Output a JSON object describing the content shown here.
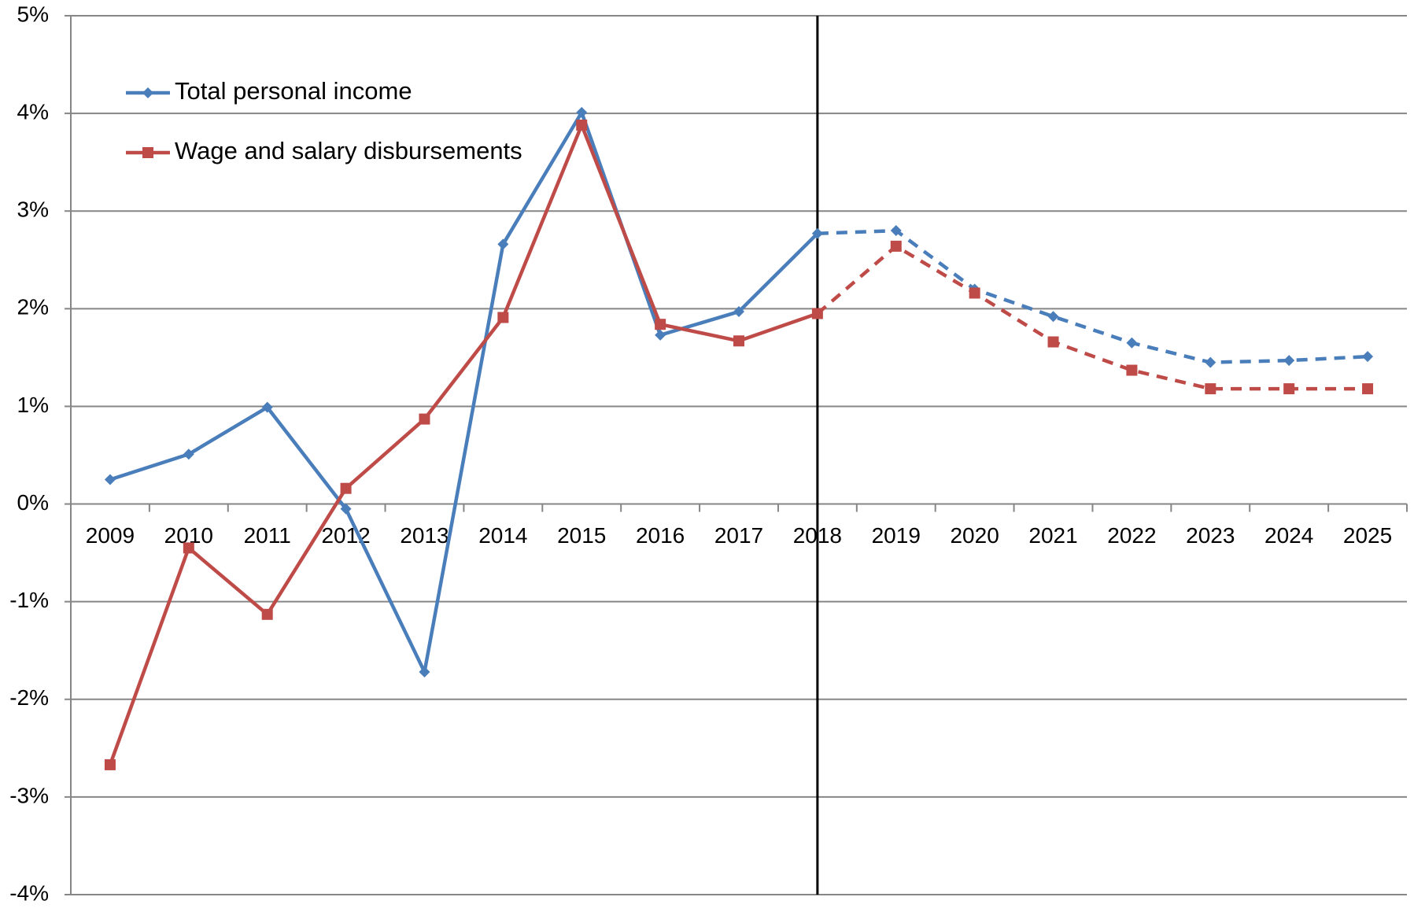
{
  "chart_data": {
    "type": "line",
    "categories": [
      "2009",
      "2010",
      "2011",
      "2012",
      "2013",
      "2014",
      "2015",
      "2016",
      "2017",
      "2018",
      "2019",
      "2020",
      "2021",
      "2022",
      "2023",
      "2024",
      "2025"
    ],
    "series": [
      {
        "name": "Total personal income",
        "color": "#4a7ebb",
        "marker": "diamond",
        "values": [
          0.25,
          0.51,
          0.99,
          -0.05,
          -1.72,
          2.66,
          4.01,
          1.73,
          1.97,
          2.77,
          2.8,
          2.2,
          1.92,
          1.65,
          1.45,
          1.47,
          1.51
        ]
      },
      {
        "name": "Wage and salary disbursements",
        "color": "#be4b48",
        "marker": "square",
        "values": [
          -2.67,
          -0.45,
          -1.13,
          0.16,
          0.87,
          1.91,
          3.88,
          1.84,
          1.67,
          1.95,
          2.64,
          2.16,
          1.66,
          1.37,
          1.18,
          1.18,
          1.18
        ]
      }
    ],
    "projection_from": "2018",
    "ylim": [
      -4,
      5
    ],
    "yticks": [
      {
        "value": -4,
        "label": "-4%"
      },
      {
        "value": -3,
        "label": "-3%"
      },
      {
        "value": -2,
        "label": "-2%"
      },
      {
        "value": -1,
        "label": "-1%"
      },
      {
        "value": 0,
        "label": "0%"
      },
      {
        "value": 1,
        "label": "1%"
      },
      {
        "value": 2,
        "label": "2%"
      },
      {
        "value": 3,
        "label": "3%"
      },
      {
        "value": 4,
        "label": "4%"
      },
      {
        "value": 5,
        "label": "5%"
      }
    ],
    "grid": true,
    "legend": "upper left"
  }
}
